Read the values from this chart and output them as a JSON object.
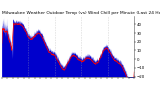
{
  "title": "Milwaukee Weather Outdoor Temp (vs) Wind Chill per Minute (Last 24 Hours)",
  "background_color": "#ffffff",
  "plot_background": "#ffffff",
  "grid_color": "#aaaaaa",
  "bar_color": "#0000cc",
  "line_color": "#ff0000",
  "ylim_min": -20,
  "ylim_max": 50,
  "y_ticks": [
    40,
    30,
    20,
    10,
    0,
    -10,
    -20
  ],
  "num_points": 1440,
  "title_fontsize": 3.2,
  "tick_fontsize": 2.8,
  "figwidth": 1.6,
  "figheight": 0.87,
  "dpi": 100
}
